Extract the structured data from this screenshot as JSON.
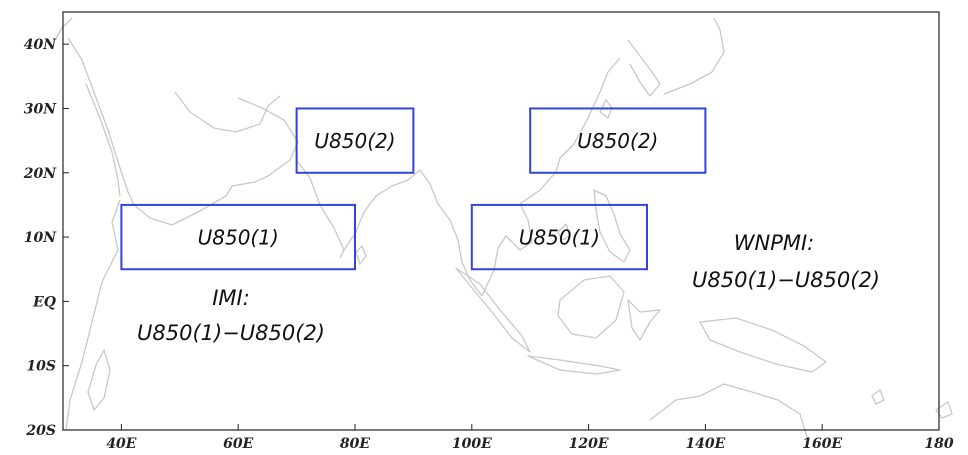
{
  "map": {
    "lon_range": [
      30,
      180
    ],
    "lat_range": [
      -20,
      45
    ],
    "x_ticks": [
      {
        "lon": 40,
        "label": "40E"
      },
      {
        "lon": 60,
        "label": "60E"
      },
      {
        "lon": 80,
        "label": "80E"
      },
      {
        "lon": 100,
        "label": "100E"
      },
      {
        "lon": 120,
        "label": "120E"
      },
      {
        "lon": 140,
        "label": "140E"
      },
      {
        "lon": 160,
        "label": "160E"
      },
      {
        "lon": 180,
        "label": "180"
      }
    ],
    "y_ticks": [
      {
        "lat": 40,
        "label": "40N"
      },
      {
        "lat": 30,
        "label": "30N"
      },
      {
        "lat": 20,
        "label": "20N"
      },
      {
        "lat": 10,
        "label": "10N"
      },
      {
        "lat": 0,
        "label": "EQ"
      },
      {
        "lat": -10,
        "label": "10S"
      },
      {
        "lat": -20,
        "label": "20S"
      }
    ],
    "box_color": "#3344dd",
    "coast_color": "#c8c8c8",
    "regions": [
      {
        "label": "U850(1)",
        "lon": [
          40,
          80
        ],
        "lat": [
          5,
          15
        ]
      },
      {
        "label": "U850(2)",
        "lon": [
          70,
          90
        ],
        "lat": [
          20,
          30
        ]
      },
      {
        "label": "U850(1)",
        "lon": [
          100,
          130
        ],
        "lat": [
          5,
          15
        ]
      },
      {
        "label": "U850(2)",
        "lon": [
          110,
          140
        ],
        "lat": [
          20,
          30
        ]
      }
    ],
    "indices": [
      {
        "title": "IMI:",
        "formula": "U850(1)−U850(2)"
      },
      {
        "title": "WNPMI:",
        "formula": "U850(1)−U850(2)"
      }
    ]
  }
}
